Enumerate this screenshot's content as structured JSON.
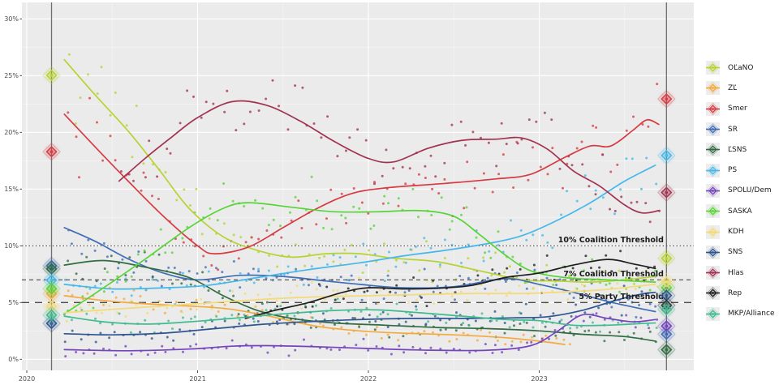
{
  "chart_data": {
    "type": "scatter",
    "title": "",
    "xlabel": "",
    "ylabel": "",
    "x_range": [
      2020.0,
      2023.9
    ],
    "y_range": [
      0,
      31.4
    ],
    "grid": true,
    "legend_position": "right",
    "x_axis_ticks": [
      {
        "label": "2020",
        "year": 2020
      },
      {
        "label": "2021",
        "year": 2021
      },
      {
        "label": "2022",
        "year": 2022
      },
      {
        "label": "2023",
        "year": 2023
      }
    ],
    "y_axis_ticks": [
      {
        "label": "0%",
        "value": 0
      },
      {
        "label": "5%",
        "value": 5
      },
      {
        "label": "10%",
        "value": 10
      },
      {
        "label": "15%",
        "value": 15
      },
      {
        "label": "20%",
        "value": 20
      },
      {
        "label": "25%",
        "value": 25
      },
      {
        "label": "30%",
        "value": 30
      }
    ],
    "thresholds": [
      {
        "label": "10% Coalition Threshold",
        "value": 10,
        "style": "dotted"
      },
      {
        "label": "7% Coalition Threshold",
        "value": 7,
        "style": "dashed"
      },
      {
        "label": "5% Party Threshold",
        "value": 5,
        "style": "longdash"
      }
    ],
    "election_lines": [
      {
        "name": "2020-election",
        "year": 2020.145
      },
      {
        "name": "2023-election",
        "year": 2023.745
      }
    ],
    "series": [
      {
        "name": "OĽaNO",
        "color": "#b8d232",
        "trend": [
          [
            2020.22,
            26.4
          ],
          [
            2020.4,
            23.3
          ],
          [
            2020.6,
            20.0
          ],
          [
            2020.78,
            16.6
          ],
          [
            2020.95,
            13.3
          ],
          [
            2021.15,
            10.8
          ],
          [
            2021.35,
            9.6
          ],
          [
            2021.55,
            9.0
          ],
          [
            2021.75,
            9.3
          ],
          [
            2021.95,
            9.3
          ],
          [
            2022.15,
            8.9
          ],
          [
            2022.4,
            8.6
          ],
          [
            2022.65,
            7.8
          ],
          [
            2022.9,
            7.0
          ],
          [
            2023.1,
            6.9
          ],
          [
            2023.3,
            6.8
          ],
          [
            2023.5,
            7.0
          ],
          [
            2023.68,
            7.3
          ]
        ],
        "election_2020": 25.03,
        "election_2023": 8.89
      },
      {
        "name": "ZĽ",
        "color": "#f4a93c",
        "trend": [
          [
            2020.22,
            5.6
          ],
          [
            2020.5,
            5.1
          ],
          [
            2020.8,
            4.8
          ],
          [
            2021.0,
            4.65
          ],
          [
            2021.2,
            4.4
          ],
          [
            2021.45,
            3.7
          ],
          [
            2021.7,
            2.9
          ],
          [
            2021.95,
            2.5
          ],
          [
            2022.2,
            2.3
          ],
          [
            2022.5,
            2.15
          ],
          [
            2022.8,
            1.9
          ],
          [
            2023.0,
            1.6
          ],
          [
            2023.15,
            1.3
          ]
        ],
        "election_2020": 5.77,
        "election_2023": null
      },
      {
        "name": "Smer",
        "color": "#d63b42",
        "trend": [
          [
            2020.22,
            21.6
          ],
          [
            2020.42,
            18.4
          ],
          [
            2020.6,
            15.6
          ],
          [
            2020.8,
            12.6
          ],
          [
            2021.0,
            10.0
          ],
          [
            2021.1,
            9.3
          ],
          [
            2021.3,
            9.9
          ],
          [
            2021.5,
            11.6
          ],
          [
            2021.7,
            13.3
          ],
          [
            2021.9,
            14.6
          ],
          [
            2022.1,
            15.1
          ],
          [
            2022.45,
            15.5
          ],
          [
            2022.75,
            15.9
          ],
          [
            2022.95,
            16.3
          ],
          [
            2023.15,
            17.8
          ],
          [
            2023.3,
            18.8
          ],
          [
            2023.42,
            18.8
          ],
          [
            2023.55,
            20.2
          ],
          [
            2023.63,
            21.1
          ],
          [
            2023.7,
            20.7
          ]
        ],
        "election_2020": 18.29,
        "election_2023": 22.94
      },
      {
        "name": "SR",
        "color": "#3f6db6",
        "trend": [
          [
            2020.22,
            11.6
          ],
          [
            2020.4,
            10.4
          ],
          [
            2020.6,
            8.8
          ],
          [
            2020.8,
            7.6
          ],
          [
            2021.0,
            7.0
          ],
          [
            2021.25,
            7.4
          ],
          [
            2021.5,
            7.3
          ],
          [
            2021.75,
            6.9
          ],
          [
            2021.95,
            6.6
          ],
          [
            2022.2,
            6.3
          ],
          [
            2022.5,
            6.4
          ],
          [
            2022.8,
            7.1
          ],
          [
            2023.0,
            6.6
          ],
          [
            2023.2,
            5.9
          ],
          [
            2023.4,
            5.1
          ],
          [
            2023.55,
            4.6
          ],
          [
            2023.68,
            4.2
          ]
        ],
        "election_2020": 8.24,
        "election_2023": 2.21
      },
      {
        "name": "ĽSNS",
        "color": "#316b42",
        "trend": [
          [
            2020.22,
            8.3
          ],
          [
            2020.45,
            8.7
          ],
          [
            2020.7,
            8.1
          ],
          [
            2020.95,
            7.2
          ],
          [
            2021.15,
            5.6
          ],
          [
            2021.35,
            4.3
          ],
          [
            2021.55,
            3.6
          ],
          [
            2021.8,
            3.2
          ],
          [
            2022.1,
            3.0
          ],
          [
            2022.4,
            2.8
          ],
          [
            2022.7,
            2.7
          ],
          [
            2023.0,
            2.5
          ],
          [
            2023.25,
            2.2
          ],
          [
            2023.5,
            2.0
          ],
          [
            2023.68,
            1.6
          ]
        ],
        "election_2020": 7.97,
        "election_2023": 0.84
      },
      {
        "name": "PS",
        "color": "#45b8ea",
        "trend": [
          [
            2020.22,
            6.6
          ],
          [
            2020.5,
            6.2
          ],
          [
            2020.8,
            6.3
          ],
          [
            2021.05,
            6.5
          ],
          [
            2021.35,
            7.2
          ],
          [
            2021.65,
            7.9
          ],
          [
            2021.95,
            8.5
          ],
          [
            2022.2,
            9.1
          ],
          [
            2022.45,
            9.6
          ],
          [
            2022.7,
            10.2
          ],
          [
            2022.9,
            10.9
          ],
          [
            2023.1,
            12.2
          ],
          [
            2023.3,
            13.8
          ],
          [
            2023.5,
            15.7
          ],
          [
            2023.68,
            17.1
          ]
        ],
        "election_2020": 6.97,
        "election_2023": 17.96
      },
      {
        "name": "SPOLU/Dem",
        "color": "#7444bc",
        "trend": [
          [
            2020.22,
            0.85
          ],
          [
            2020.6,
            0.75
          ],
          [
            2020.95,
            0.9
          ],
          [
            2021.2,
            1.15
          ],
          [
            2021.4,
            1.2
          ],
          [
            2021.7,
            1.1
          ],
          [
            2022.0,
            0.95
          ],
          [
            2022.35,
            0.8
          ],
          [
            2022.7,
            0.8
          ],
          [
            2022.95,
            1.2
          ],
          [
            2023.1,
            2.4
          ],
          [
            2023.25,
            3.9
          ],
          [
            2023.4,
            3.6
          ],
          [
            2023.55,
            3.3
          ],
          [
            2023.68,
            3.5
          ]
        ],
        "election_2020": null,
        "election_2023": 2.93
      },
      {
        "name": "SASKA",
        "color": "#57d438",
        "trend": [
          [
            2020.22,
            4.0
          ],
          [
            2020.45,
            6.3
          ],
          [
            2020.7,
            8.9
          ],
          [
            2020.95,
            11.6
          ],
          [
            2021.15,
            13.3
          ],
          [
            2021.3,
            13.8
          ],
          [
            2021.55,
            13.4
          ],
          [
            2021.8,
            13.0
          ],
          [
            2022.05,
            13.0
          ],
          [
            2022.3,
            13.1
          ],
          [
            2022.5,
            12.6
          ],
          [
            2022.65,
            11.0
          ],
          [
            2022.8,
            9.2
          ],
          [
            2022.95,
            7.8
          ],
          [
            2023.15,
            7.2
          ],
          [
            2023.4,
            7.0
          ],
          [
            2023.68,
            6.8
          ]
        ],
        "election_2020": 6.22,
        "election_2023": 6.32
      },
      {
        "name": "KDH",
        "color": "#f3da74",
        "trend": [
          [
            2020.22,
            4.1
          ],
          [
            2020.5,
            4.4
          ],
          [
            2020.8,
            4.7
          ],
          [
            2021.1,
            5.0
          ],
          [
            2021.4,
            5.3
          ],
          [
            2021.7,
            5.5
          ],
          [
            2022.0,
            5.6
          ],
          [
            2022.3,
            5.7
          ],
          [
            2022.6,
            5.8
          ],
          [
            2022.9,
            5.8
          ],
          [
            2023.1,
            5.9
          ],
          [
            2023.35,
            6.1
          ],
          [
            2023.55,
            6.4
          ],
          [
            2023.68,
            6.6
          ]
        ],
        "election_2020": 4.65,
        "election_2023": 6.82
      },
      {
        "name": "SNS",
        "color": "#2e5590",
        "trend": [
          [
            2020.22,
            2.25
          ],
          [
            2020.5,
            2.15
          ],
          [
            2020.8,
            2.3
          ],
          [
            2021.1,
            2.7
          ],
          [
            2021.4,
            3.1
          ],
          [
            2021.7,
            3.35
          ],
          [
            2021.95,
            3.5
          ],
          [
            2022.25,
            3.6
          ],
          [
            2022.55,
            3.6
          ],
          [
            2022.85,
            3.65
          ],
          [
            2023.05,
            3.75
          ],
          [
            2023.25,
            4.3
          ],
          [
            2023.45,
            5.2
          ],
          [
            2023.6,
            5.75
          ],
          [
            2023.68,
            5.9
          ]
        ],
        "election_2020": 3.16,
        "election_2023": 5.62
      },
      {
        "name": "Hlas",
        "color": "#a23350",
        "trend": [
          [
            2020.54,
            15.7
          ],
          [
            2020.7,
            17.8
          ],
          [
            2020.85,
            19.6
          ],
          [
            2021.0,
            21.3
          ],
          [
            2021.2,
            22.7
          ],
          [
            2021.4,
            22.4
          ],
          [
            2021.6,
            21.0
          ],
          [
            2021.8,
            19.2
          ],
          [
            2022.0,
            17.7
          ],
          [
            2022.15,
            17.4
          ],
          [
            2022.35,
            18.6
          ],
          [
            2022.55,
            19.3
          ],
          [
            2022.75,
            19.4
          ],
          [
            2022.9,
            19.5
          ],
          [
            2023.05,
            18.5
          ],
          [
            2023.2,
            16.6
          ],
          [
            2023.35,
            15.3
          ],
          [
            2023.5,
            13.6
          ],
          [
            2023.6,
            12.9
          ],
          [
            2023.7,
            13.1
          ]
        ],
        "election_2020": null,
        "election_2023": 14.7
      },
      {
        "name": "Rep",
        "color": "#1e1e1e",
        "trend": [
          [
            2021.28,
            3.6
          ],
          [
            2021.45,
            4.3
          ],
          [
            2021.65,
            5.0
          ],
          [
            2021.85,
            5.9
          ],
          [
            2022.0,
            6.3
          ],
          [
            2022.2,
            6.2
          ],
          [
            2022.4,
            6.25
          ],
          [
            2022.6,
            6.5
          ],
          [
            2022.8,
            7.2
          ],
          [
            2023.0,
            7.6
          ],
          [
            2023.2,
            8.3
          ],
          [
            2023.4,
            8.8
          ],
          [
            2023.55,
            8.4
          ],
          [
            2023.68,
            8.0
          ]
        ],
        "election_2020": null,
        "election_2023": 4.75
      },
      {
        "name": "MKP/Alliance",
        "color": "#40ba90",
        "trend": [
          [
            2020.22,
            3.8
          ],
          [
            2020.45,
            3.3
          ],
          [
            2020.7,
            3.1
          ],
          [
            2020.95,
            3.3
          ],
          [
            2021.2,
            3.6
          ],
          [
            2021.5,
            4.0
          ],
          [
            2021.8,
            4.3
          ],
          [
            2022.05,
            4.35
          ],
          [
            2022.3,
            4.1
          ],
          [
            2022.55,
            3.8
          ],
          [
            2022.8,
            3.5
          ],
          [
            2023.0,
            3.4
          ],
          [
            2023.2,
            3.0
          ],
          [
            2023.4,
            3.0
          ],
          [
            2023.6,
            3.15
          ],
          [
            2023.68,
            3.2
          ]
        ],
        "election_2020": 3.9,
        "election_2023": 4.38
      }
    ]
  }
}
